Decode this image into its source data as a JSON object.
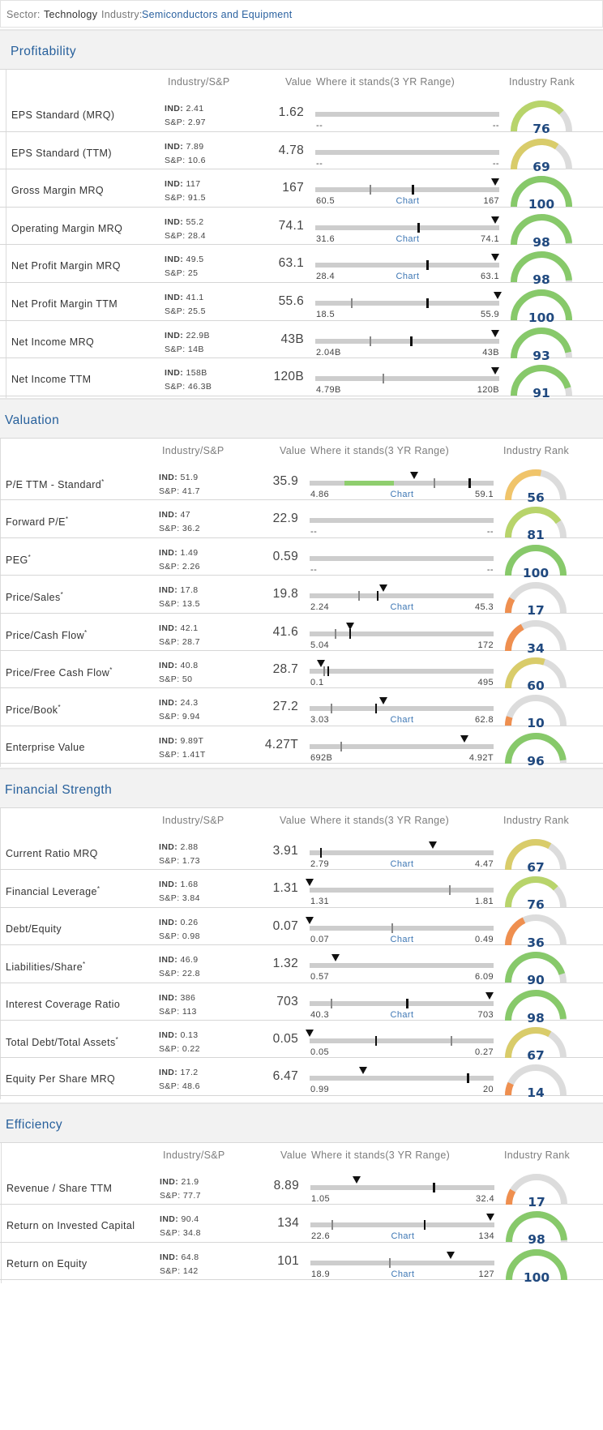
{
  "header": {
    "sector_label": "Sector:",
    "sector_value": "Technology",
    "industry_label": "Industry:",
    "industry_value": "Semiconductors and Equipment"
  },
  "columns": {
    "industry_sp": "Industry/S&P",
    "value": "Value",
    "where": "Where it stands(3 YR Range)",
    "rank": "Industry Rank"
  },
  "chart_link_label": "Chart",
  "colors": {
    "rank_green": "#87c96a",
    "rank_lightgreen": "#b8d46b",
    "rank_yellow": "#d9cc6a",
    "rank_orange": "#f0c46a",
    "rank_red": "#ef8f4f",
    "rank_track": "#dcdcdc",
    "title_blue": "#27609c"
  },
  "sections": [
    {
      "title": "Profitability",
      "rows": [
        {
          "name": "EPS Standard (MRQ)",
          "star": false,
          "ind": "2.41",
          "sp": "2.97",
          "value": "1.62",
          "min": "--",
          "max": "--",
          "chart": false,
          "rank": 76,
          "ind_pos": null,
          "val_pos": null,
          "avg_pos": null,
          "green": null
        },
        {
          "name": "EPS Standard (TTM)",
          "star": false,
          "ind": "7.89",
          "sp": "10.6",
          "value": "4.78",
          "min": "--",
          "max": "--",
          "chart": false,
          "rank": 69,
          "ind_pos": null,
          "val_pos": null,
          "avg_pos": null,
          "green": null
        },
        {
          "name": "Gross Margin MRQ",
          "star": false,
          "ind": "117",
          "sp": "91.5",
          "value": "167",
          "min": "60.5",
          "max": "167",
          "chart": true,
          "rank": 100,
          "ind_pos": 0.53,
          "val_pos": 0.98,
          "avg_pos": 0.3,
          "green": null
        },
        {
          "name": "Operating Margin MRQ",
          "star": false,
          "ind": "55.2",
          "sp": "28.4",
          "value": "74.1",
          "min": "31.6",
          "max": "74.1",
          "chart": true,
          "rank": 98,
          "ind_pos": 0.56,
          "val_pos": 0.98,
          "avg_pos": null,
          "green": null
        },
        {
          "name": "Net Profit Margin MRQ",
          "star": false,
          "ind": "49.5",
          "sp": "25",
          "value": "63.1",
          "min": "28.4",
          "max": "63.1",
          "chart": true,
          "rank": 98,
          "ind_pos": 0.61,
          "val_pos": 0.98,
          "avg_pos": null,
          "green": null
        },
        {
          "name": "Net Profit Margin TTM",
          "star": false,
          "ind": "41.1",
          "sp": "25.5",
          "value": "55.6",
          "min": "18.5",
          "max": "55.9",
          "chart": false,
          "rank": 100,
          "ind_pos": 0.61,
          "val_pos": 0.99,
          "avg_pos": 0.2,
          "green": null
        },
        {
          "name": "Net Income MRQ",
          "star": false,
          "ind": "22.9B",
          "sp": "14B",
          "value": "43B",
          "min": "2.04B",
          "max": "43B",
          "chart": false,
          "rank": 93,
          "ind_pos": 0.52,
          "val_pos": 0.98,
          "avg_pos": 0.3,
          "green": null
        },
        {
          "name": "Net Income TTM",
          "star": false,
          "ind": "158B",
          "sp": "46.3B",
          "value": "120B",
          "min": "4.79B",
          "max": "120B",
          "chart": false,
          "rank": 91,
          "ind_pos": null,
          "val_pos": 0.98,
          "avg_pos": 0.37,
          "green": null
        }
      ]
    },
    {
      "title": "Valuation",
      "rows": [
        {
          "name": "P/E TTM - Standard",
          "star": true,
          "ind": "51.9",
          "sp": "41.7",
          "value": "35.9",
          "min": "4.86",
          "max": "59.1",
          "chart": true,
          "rank": 56,
          "ind_pos": 0.87,
          "val_pos": 0.57,
          "avg_pos": 0.68,
          "green": [
            0.19,
            0.46
          ]
        },
        {
          "name": "Forward P/E",
          "star": true,
          "ind": "47",
          "sp": "36.2",
          "value": "22.9",
          "min": "--",
          "max": "--",
          "chart": false,
          "rank": 81,
          "ind_pos": null,
          "val_pos": null,
          "avg_pos": null,
          "green": null
        },
        {
          "name": "PEG",
          "star": true,
          "ind": "1.49",
          "sp": "2.26",
          "value": "0.59",
          "min": "--",
          "max": "--",
          "chart": false,
          "rank": 100,
          "ind_pos": null,
          "val_pos": null,
          "avg_pos": null,
          "green": null
        },
        {
          "name": "Price/Sales",
          "star": true,
          "ind": "17.8",
          "sp": "13.5",
          "value": "19.8",
          "min": "2.24",
          "max": "45.3",
          "chart": true,
          "rank": 17,
          "ind_pos": 0.37,
          "val_pos": 0.4,
          "avg_pos": 0.27,
          "green": null
        },
        {
          "name": "Price/Cash Flow",
          "star": true,
          "ind": "42.1",
          "sp": "28.7",
          "value": "41.6",
          "min": "5.04",
          "max": "172",
          "chart": false,
          "rank": 34,
          "ind_pos": 0.22,
          "val_pos": 0.22,
          "avg_pos": 0.14,
          "green": null
        },
        {
          "name": "Price/Free Cash Flow",
          "star": true,
          "ind": "40.8",
          "sp": "50",
          "value": "28.7",
          "min": "0.1",
          "max": "495",
          "chart": false,
          "rank": 60,
          "ind_pos": 0.1,
          "val_pos": 0.06,
          "avg_pos": 0.08,
          "green": null
        },
        {
          "name": "Price/Book",
          "star": true,
          "ind": "24.3",
          "sp": "9.94",
          "value": "27.2",
          "min": "3.03",
          "max": "62.8",
          "chart": true,
          "rank": 10,
          "ind_pos": 0.36,
          "val_pos": 0.4,
          "avg_pos": 0.12,
          "green": null
        },
        {
          "name": "Enterprise Value",
          "star": false,
          "ind": "9.89T",
          "sp": "1.41T",
          "value": "4.27T",
          "min": "692B",
          "max": "4.92T",
          "chart": false,
          "rank": 96,
          "ind_pos": null,
          "val_pos": 0.84,
          "avg_pos": 0.17,
          "green": null
        }
      ]
    },
    {
      "title": "Financial Strength",
      "rows": [
        {
          "name": "Current Ratio MRQ",
          "star": false,
          "ind": "2.88",
          "sp": "1.73",
          "value": "3.91",
          "min": "2.79",
          "max": "4.47",
          "chart": true,
          "rank": 67,
          "ind_pos": 0.06,
          "val_pos": 0.67,
          "avg_pos": null,
          "green": null
        },
        {
          "name": "Financial Leverage",
          "star": true,
          "ind": "1.68",
          "sp": "3.84",
          "value": "1.31",
          "min": "1.31",
          "max": "1.81",
          "chart": false,
          "rank": 76,
          "ind_pos": null,
          "val_pos": 0.0,
          "avg_pos": 0.76,
          "green": null
        },
        {
          "name": "Debt/Equity",
          "star": false,
          "ind": "0.26",
          "sp": "0.98",
          "value": "0.07",
          "min": "0.07",
          "max": "0.49",
          "chart": true,
          "rank": 36,
          "ind_pos": null,
          "val_pos": 0.0,
          "avg_pos": 0.45,
          "green": null
        },
        {
          "name": "Liabilities/Share",
          "star": true,
          "ind": "46.9",
          "sp": "22.8",
          "value": "1.32",
          "min": "0.57",
          "max": "6.09",
          "chart": false,
          "rank": 90,
          "ind_pos": null,
          "val_pos": 0.14,
          "avg_pos": null,
          "green": null
        },
        {
          "name": "Interest Coverage Ratio",
          "star": false,
          "ind": "386",
          "sp": "113",
          "value": "703",
          "min": "40.3",
          "max": "703",
          "chart": true,
          "rank": 98,
          "ind_pos": 0.53,
          "val_pos": 0.98,
          "avg_pos": 0.12,
          "green": null
        },
        {
          "name": "Total Debt/Total Assets",
          "star": true,
          "ind": "0.13",
          "sp": "0.22",
          "value": "0.05",
          "min": "0.05",
          "max": "0.27",
          "chart": false,
          "rank": 67,
          "ind_pos": 0.36,
          "val_pos": 0.0,
          "avg_pos": 0.77,
          "green": null
        },
        {
          "name": "Equity Per Share MRQ",
          "star": false,
          "ind": "17.2",
          "sp": "48.6",
          "value": "6.47",
          "min": "0.99",
          "max": "20",
          "chart": false,
          "rank": 14,
          "ind_pos": 0.86,
          "val_pos": 0.29,
          "avg_pos": null,
          "green": null
        }
      ]
    },
    {
      "title": "Efficiency",
      "rows": [
        {
          "name": "Revenue / Share TTM",
          "star": false,
          "ind": "21.9",
          "sp": "77.7",
          "value": "8.89",
          "min": "1.05",
          "max": "32.4",
          "chart": false,
          "rank": 17,
          "ind_pos": 0.67,
          "val_pos": 0.25,
          "avg_pos": null,
          "green": null
        },
        {
          "name": "Return on Invested Capital",
          "star": false,
          "ind": "90.4",
          "sp": "34.8",
          "value": "134",
          "min": "22.6",
          "max": "134",
          "chart": true,
          "rank": 98,
          "ind_pos": 0.62,
          "val_pos": 0.98,
          "avg_pos": 0.12,
          "green": null
        },
        {
          "name": "Return on Equity",
          "star": false,
          "ind": "64.8",
          "sp": "142",
          "value": "101",
          "min": "18.9",
          "max": "127",
          "chart": true,
          "rank": 100,
          "ind_pos": null,
          "val_pos": 0.76,
          "avg_pos": 0.43,
          "green": null
        }
      ]
    }
  ]
}
